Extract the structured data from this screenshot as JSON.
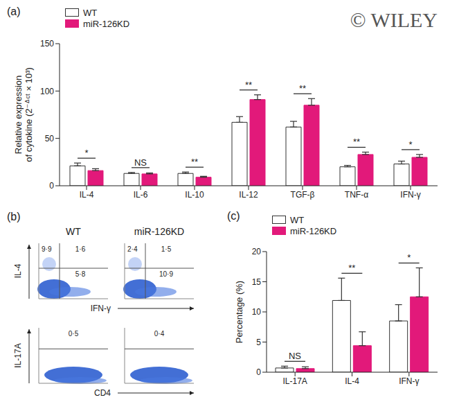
{
  "chart_data": [
    {
      "type": "bar",
      "title": "(a)",
      "watermark": "© WILEY",
      "ylabel": [
        "Relative expression",
        "of cytokine (2⁻ᐞᶜᵗ × 10³)"
      ],
      "categories": [
        "IL-4",
        "IL-6",
        "IL-10",
        "IL-12",
        "TGF-β",
        "TNF-α",
        "IFN-γ"
      ],
      "series": [
        {
          "name": "WT",
          "color": "#ffffff",
          "values": [
            21,
            13,
            13,
            67,
            62,
            20,
            23
          ],
          "errors": [
            3,
            1,
            1.5,
            6,
            6,
            1.5,
            3
          ]
        },
        {
          "name": "miR-126KD",
          "color": "#e2197a",
          "values": [
            16,
            12.5,
            9,
            91,
            85,
            33,
            30
          ],
          "errors": [
            2,
            1,
            1,
            5,
            7,
            2.5,
            3
          ]
        }
      ],
      "significance": [
        "*",
        "NS",
        "**",
        "**",
        "**",
        "**",
        "*"
      ],
      "ylim": [
        0,
        150
      ],
      "yticks": [
        0,
        50,
        100,
        150
      ],
      "legend": "upper left"
    },
    {
      "type": "flow_cytometry",
      "title": "(b)",
      "columns": [
        "WT",
        "miR-126KD"
      ],
      "rows": [
        {
          "ylabel": "IL-4",
          "xlabel": "IFN-γ",
          "quadrants": [
            {
              "upper_left": "9·9",
              "upper_right": "1·6",
              "lower_right": "5·8"
            },
            {
              "upper_left": "2·4",
              "upper_right": "1·5",
              "lower_right": "10·9"
            }
          ]
        },
        {
          "ylabel": "IL-17A",
          "xlabel": "CD4",
          "quadrants": [
            {
              "upper_right": "0·5"
            },
            {
              "upper_right": "0·4"
            }
          ]
        }
      ]
    },
    {
      "type": "bar",
      "title": "(c)",
      "ylabel": "Percentage (%)",
      "categories": [
        "IL-17A",
        "IL-4",
        "IFN-γ"
      ],
      "series": [
        {
          "name": "WT",
          "color": "#ffffff",
          "values": [
            0.7,
            11.9,
            8.5
          ],
          "errors": [
            0.3,
            3.7,
            2.7
          ]
        },
        {
          "name": "miR-126KD",
          "color": "#e2197a",
          "values": [
            0.6,
            4.4,
            12.5
          ],
          "errors": [
            0.3,
            2.3,
            4.8
          ]
        }
      ],
      "significance": [
        "NS",
        "**",
        "*"
      ],
      "ylim": [
        0,
        20
      ],
      "yticks": [
        0,
        5,
        10,
        15,
        20
      ],
      "legend": "upper left"
    }
  ]
}
